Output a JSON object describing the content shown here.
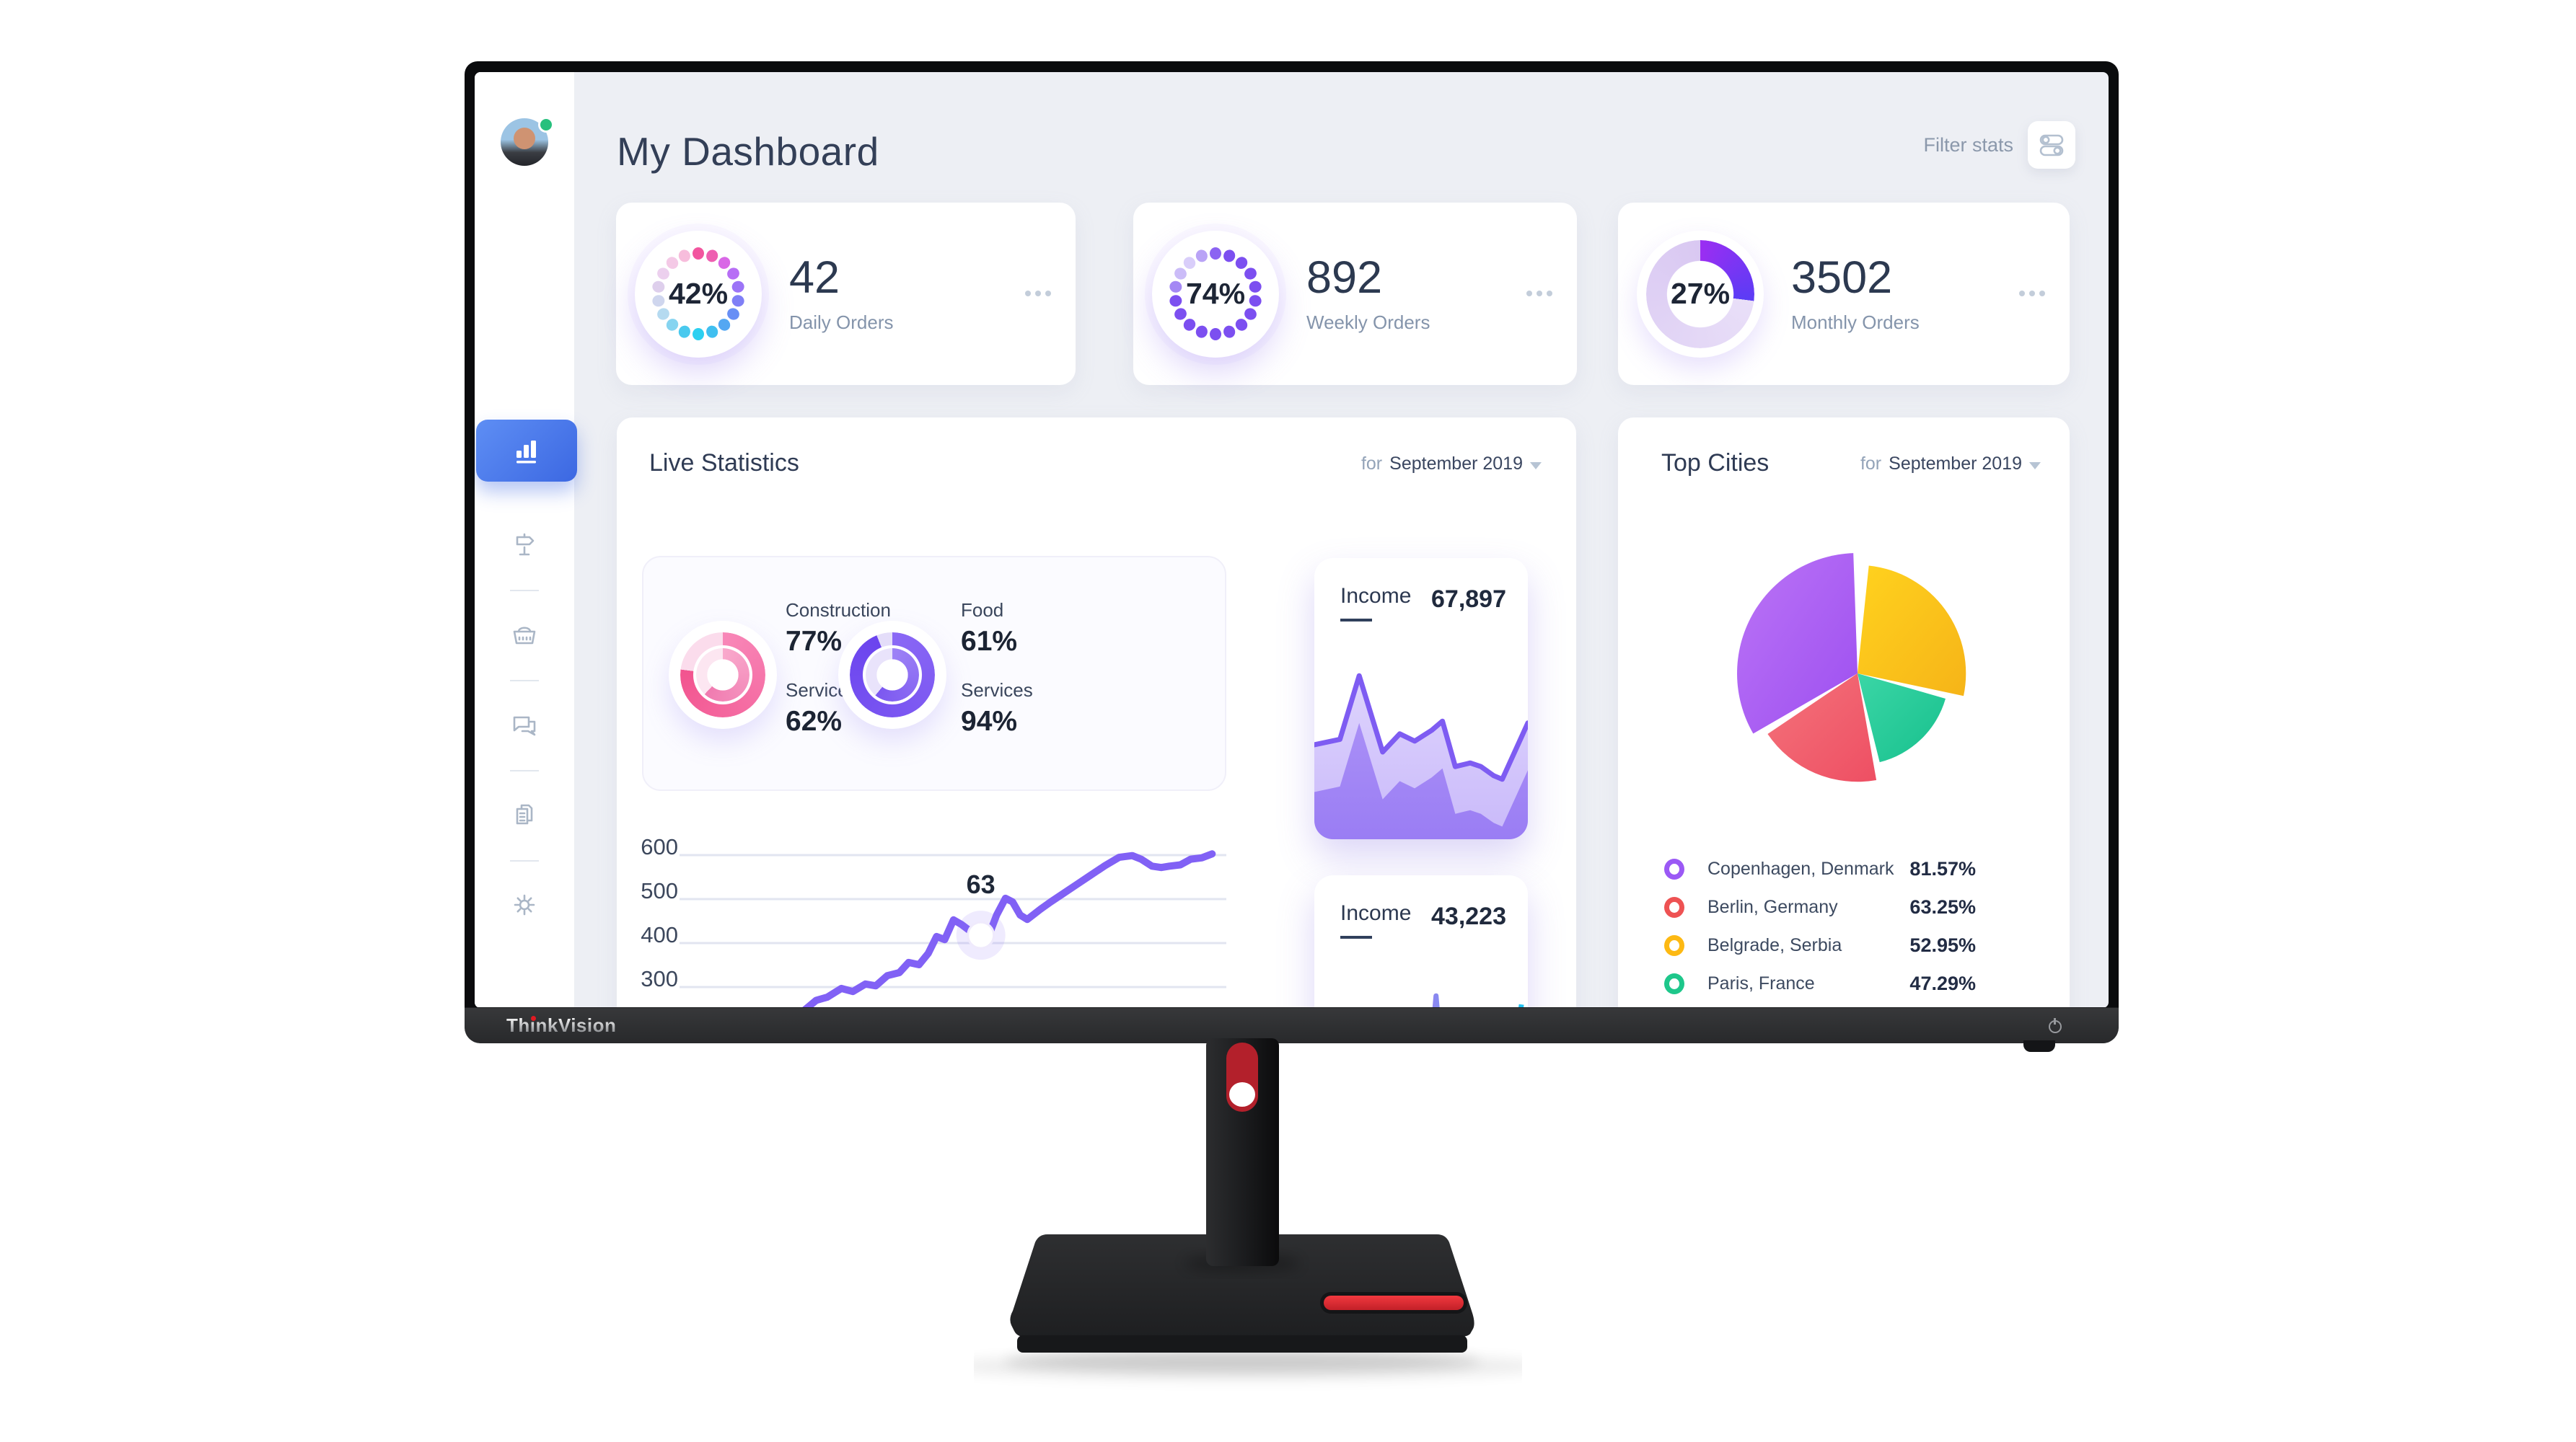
{
  "monitor": {
    "brand": "ThinkVision"
  },
  "dashboard": {
    "title": "My Dashboard",
    "filter_label": "Filter stats",
    "stat_cards": [
      {
        "percent": "42%",
        "value": "42",
        "label": "Daily Orders"
      },
      {
        "percent": "74%",
        "value": "892",
        "label": "Weekly Orders"
      },
      {
        "percent": "27%",
        "value": "3502",
        "label": "Monthly Orders"
      }
    ],
    "live_stats": {
      "title": "Live Statistics",
      "period_prefix": "for",
      "period": "September 2019",
      "donut1": {
        "label1": "Construction",
        "value1": "77%",
        "label2": "Services",
        "value2": "62%"
      },
      "donut2": {
        "label1": "Food",
        "value1": "61%",
        "label2": "Services",
        "value2": "94%"
      }
    },
    "income1": {
      "label": "Income",
      "value": "67,897"
    },
    "income2": {
      "label": "Income",
      "value": "43,223"
    },
    "top_cities": {
      "title": "Top Cities",
      "period_prefix": "for",
      "period": "September 2019",
      "legend": [
        {
          "name": "Copenhagen, Denmark",
          "value": "81.57%",
          "color": "#9b59f5"
        },
        {
          "name": "Berlin, Germany",
          "value": "63.25%",
          "color": "#ee5253"
        },
        {
          "name": "Belgrade, Serbia",
          "value": "52.95%",
          "color": "#fdb913"
        },
        {
          "name": "Paris, France",
          "value": "47.29%",
          "color": "#1ec78b"
        }
      ]
    }
  },
  "chart_data": [
    {
      "id": "daily",
      "type": "gauge",
      "title": "Daily Orders",
      "percent": 42,
      "value": 42,
      "style": "dotted-ring",
      "dot_colors": [
        "#f2559f",
        "#ee5fb0",
        "#d968e6",
        "#b76ef5",
        "#9c74f7",
        "#7f7ff6",
        "#688ff5",
        "#54a7f2",
        "#3fbff0",
        "#2bd0f1",
        "#49c9ee",
        "#86d4f0",
        "#b5daf0",
        "#cfd6ee",
        "#decfec",
        "#ecd0ee",
        "#f4c9e6",
        "#f7bddc"
      ]
    },
    {
      "id": "weekly",
      "type": "gauge",
      "title": "Weekly Orders",
      "percent": 74,
      "value": 892,
      "style": "dotted-ring",
      "dot_colors": [
        "#8b63f2",
        "#7c4ff0",
        "#7c4ff0",
        "#7c4ff0",
        "#7c4ff0",
        "#7c4ff0",
        "#7c4ff0",
        "#7c4ff0",
        "#7c4ff0",
        "#7c4ff0",
        "#7c4ff0",
        "#7c4ff0",
        "#7c4ff0",
        "#7c4ff0",
        "#a488f4",
        "#cbbcf8",
        "#d9cefa",
        "#b9a3f6"
      ]
    },
    {
      "id": "monthly",
      "type": "donut",
      "title": "Monthly Orders",
      "percent": 27,
      "value": 3502,
      "fill": [
        "#9b2ef2",
        "#5b3cf5"
      ],
      "track": [
        "#e9dff8",
        "#d9c8f2"
      ]
    },
    {
      "id": "live_donuts",
      "type": "multi-donut",
      "title": "Live Statistics",
      "pairs": [
        {
          "outer": {
            "label": "Construction",
            "percent": 77,
            "c1": "#f887b8",
            "c2": "#f2548f",
            "track": "#fbdcec"
          },
          "inner": {
            "label": "Services",
            "percent": 62,
            "c1": "#f9a9cc",
            "c2": "#f07bb0",
            "track": "#fce6f1"
          }
        },
        {
          "outer": {
            "label": "Services",
            "percent": 94,
            "c1": "#8a68f5",
            "c2": "#6b44ee",
            "track": "#e4ddf9"
          },
          "inner": {
            "label": "Food",
            "percent": 61,
            "c1": "#9d82f6",
            "c2": "#7c58f0",
            "track": "#e9e3fb"
          }
        }
      ]
    },
    {
      "id": "income_trend_1",
      "type": "area",
      "title": "Income",
      "value": 67897,
      "layer_offset": 26,
      "points": [
        [
          0,
          48
        ],
        [
          12,
          45
        ],
        [
          21,
          10
        ],
        [
          32,
          52
        ],
        [
          40,
          42
        ],
        [
          47,
          46
        ],
        [
          55,
          40
        ],
        [
          60,
          35
        ],
        [
          66,
          60
        ],
        [
          73,
          58
        ],
        [
          78,
          60
        ],
        [
          84,
          65
        ],
        [
          88,
          67
        ],
        [
          100,
          36
        ]
      ]
    },
    {
      "id": "live_line",
      "type": "line",
      "title": "Live Statistics trend",
      "y_ticks": [
        600,
        500,
        400,
        300
      ],
      "ylim": [
        240,
        620
      ],
      "grid": true,
      "marker": {
        "index": 17,
        "label": "63"
      },
      "points": [
        [
          22.2,
          231
        ],
        [
          25,
          260
        ],
        [
          27,
          267
        ],
        [
          29.6,
          287
        ],
        [
          31.7,
          280
        ],
        [
          34,
          297
        ],
        [
          35.9,
          293
        ],
        [
          38,
          316
        ],
        [
          40.2,
          323
        ],
        [
          41.9,
          346
        ],
        [
          43.8,
          341
        ],
        [
          45.5,
          367
        ],
        [
          47,
          405
        ],
        [
          48.5,
          398
        ],
        [
          50.1,
          443
        ],
        [
          51.5,
          433
        ],
        [
          53.1,
          418
        ],
        [
          55.1,
          408
        ],
        [
          56.4,
          402
        ],
        [
          58,
          454
        ],
        [
          59.6,
          492
        ],
        [
          60.9,
          484
        ],
        [
          62.3,
          454
        ],
        [
          63.6,
          444
        ],
        [
          66,
          467
        ],
        [
          67.9,
          484
        ],
        [
          70.2,
          503
        ],
        [
          72.6,
          523
        ],
        [
          75,
          543
        ],
        [
          77.8,
          566
        ],
        [
          80.4,
          585
        ],
        [
          82.8,
          589
        ],
        [
          84.4,
          581
        ],
        [
          86.4,
          565
        ],
        [
          88.1,
          562
        ],
        [
          89.6,
          565
        ],
        [
          91.6,
          568
        ],
        [
          93.5,
          581
        ],
        [
          95.5,
          584
        ],
        [
          97.4,
          593
        ]
      ]
    },
    {
      "id": "income_trend_2",
      "type": "area",
      "title": "Income",
      "value": 43223,
      "stroke_colors": [
        "#f065b5",
        "#9f7cf0",
        "#21c3f2"
      ],
      "points": [
        [
          0,
          28
        ],
        [
          9,
          58
        ],
        [
          18,
          43
        ],
        [
          28,
          78
        ],
        [
          33,
          101
        ],
        [
          50,
          101
        ],
        [
          57,
          3
        ],
        [
          64,
          99
        ],
        [
          80,
          101
        ],
        [
          87,
          98
        ],
        [
          97,
          8
        ]
      ]
    },
    {
      "id": "cities_pie",
      "type": "pie",
      "title": "Top Cities",
      "slices": [
        {
          "name": "Copenhagen, Denmark",
          "value": 81.57,
          "start": 240,
          "end": 358,
          "radius": 1.0,
          "c1": "#bb74f6",
          "c2": "#9d4ff0"
        },
        {
          "name": "Berlin, Germany",
          "value": 63.25,
          "start": 170,
          "end": 236,
          "radius": 0.9,
          "c1": "#f4737b",
          "c2": "#ee4f63"
        },
        {
          "name": "Belgrade, Serbia",
          "value": 52.95,
          "start": 6,
          "end": 102,
          "radius": 0.9,
          "c1": "#ffd21e",
          "c2": "#f6b418"
        },
        {
          "name": "Paris, France",
          "value": 47.29,
          "start": 106,
          "end": 166,
          "radius": 0.76,
          "c1": "#3bd6a6",
          "c2": "#17c08d"
        }
      ]
    }
  ]
}
